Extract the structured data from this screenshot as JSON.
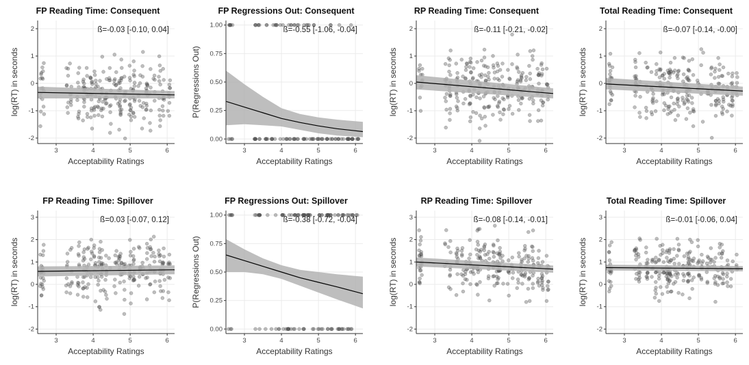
{
  "chart_data": [
    {
      "type": "scatter",
      "title": "FP Reading Time: Consequent",
      "xlabel": "Acceptability Ratings",
      "ylabel": "log(RT) in seconds",
      "annotation": "ß=-0.03 [-0.10, 0.04]",
      "xlim": [
        2.5,
        6.2
      ],
      "ylim": [
        -2.2,
        2.3
      ],
      "xticks": [
        3,
        4,
        5,
        6
      ],
      "yticks": [
        -2,
        -1,
        0,
        1,
        2
      ],
      "fit": {
        "x": [
          2.5,
          6.2
        ],
        "y": [
          -0.33,
          -0.42
        ]
      },
      "band": {
        "lower": [
          -0.55,
          -0.55
        ],
        "upper": [
          -0.12,
          -0.28
        ]
      },
      "grid": true
    },
    {
      "type": "scatter",
      "title": "FP Regressions Out: Consequent",
      "xlabel": "Acceptability Ratings",
      "ylabel": "P(Regressions Out)",
      "annotation": "ß=-0.55 [-1.06, -0.04]",
      "xlim": [
        2.5,
        6.2
      ],
      "ylim": [
        -0.04,
        1.04
      ],
      "xticks": [
        3,
        4,
        5,
        6
      ],
      "yticks": [
        0.0,
        0.25,
        0.5,
        0.75,
        1.0
      ],
      "fit": {
        "x": [
          2.5,
          3,
          3.5,
          4,
          4.5,
          5,
          5.5,
          6.2
        ],
        "y": [
          0.33,
          0.28,
          0.23,
          0.18,
          0.145,
          0.115,
          0.09,
          0.065
        ]
      },
      "band": {
        "lower": [
          0.12,
          0.13,
          0.12,
          0.11,
          0.08,
          0.05,
          0.03,
          0.015
        ],
        "upper": [
          0.6,
          0.48,
          0.37,
          0.27,
          0.22,
          0.19,
          0.17,
          0.15
        ]
      },
      "grid": true
    },
    {
      "type": "scatter",
      "title": "RP Reading Time: Consequent",
      "xlabel": "Acceptability Ratings",
      "ylabel": "log(RT) in seconds",
      "annotation": "ß=-0.11 [-0.21, -0.02]",
      "xlim": [
        2.5,
        6.2
      ],
      "ylim": [
        -2.2,
        2.3
      ],
      "xticks": [
        3,
        4,
        5,
        6
      ],
      "yticks": [
        -2,
        -1,
        0,
        1,
        2
      ],
      "fit": {
        "x": [
          2.5,
          6.2
        ],
        "y": [
          0.05,
          -0.37
        ]
      },
      "band": {
        "lower": [
          -0.22,
          -0.55
        ],
        "upper": [
          0.3,
          -0.18
        ]
      },
      "grid": true
    },
    {
      "type": "scatter",
      "title": "Total Reading Time: Consequent",
      "xlabel": "Acceptability Ratings",
      "ylabel": "log(RT) in seconds",
      "annotation": "ß=-0.07 [-0.14, -0.00]",
      "xlim": [
        2.5,
        6.2
      ],
      "ylim": [
        -2.2,
        2.3
      ],
      "xticks": [
        3,
        4,
        5,
        6
      ],
      "yticks": [
        -2,
        -1,
        0,
        1,
        2
      ],
      "fit": {
        "x": [
          2.5,
          6.2
        ],
        "y": [
          -0.02,
          -0.28
        ]
      },
      "band": {
        "lower": [
          -0.22,
          -0.45
        ],
        "upper": [
          0.2,
          -0.12
        ]
      },
      "grid": true
    },
    {
      "type": "scatter",
      "title": "FP Reading Time: Spillover",
      "xlabel": "Acceptability Ratings",
      "ylabel": "log(RT) in seconds",
      "annotation": "ß=0.03 [-0.07, 0.12]",
      "xlim": [
        2.5,
        6.2
      ],
      "ylim": [
        -2.2,
        3.3
      ],
      "xticks": [
        3,
        4,
        5,
        6
      ],
      "yticks": [
        -2,
        -1,
        0,
        1,
        2,
        3
      ],
      "fit": {
        "x": [
          2.5,
          6.2
        ],
        "y": [
          0.58,
          0.65
        ]
      },
      "band": {
        "lower": [
          0.35,
          0.45
        ],
        "upper": [
          0.8,
          0.85
        ]
      },
      "grid": true
    },
    {
      "type": "scatter",
      "title": "FP Regressions Out: Spillover",
      "xlabel": "Acceptability Ratings",
      "ylabel": "P(Regressions Out)",
      "annotation": "ß=-0.38 [-0.72, -0.04]",
      "xlim": [
        2.5,
        6.2
      ],
      "ylim": [
        -0.04,
        1.04
      ],
      "xticks": [
        3,
        4,
        5,
        6
      ],
      "yticks": [
        0.0,
        0.25,
        0.5,
        0.75,
        1.0
      ],
      "fit": {
        "x": [
          2.5,
          3,
          3.5,
          4,
          4.5,
          5,
          5.5,
          6.2
        ],
        "y": [
          0.65,
          0.6,
          0.55,
          0.5,
          0.45,
          0.41,
          0.37,
          0.31
        ]
      },
      "band": {
        "lower": [
          0.5,
          0.5,
          0.48,
          0.44,
          0.38,
          0.32,
          0.26,
          0.18
        ],
        "upper": [
          0.79,
          0.7,
          0.62,
          0.56,
          0.52,
          0.5,
          0.48,
          0.46
        ]
      },
      "grid": true
    },
    {
      "type": "scatter",
      "title": "RP Reading Time: Spillover",
      "xlabel": "Acceptability Ratings",
      "ylabel": "log(RT) in seconds",
      "annotation": "ß=-0.08 [-0.14, -0.01]",
      "xlim": [
        2.5,
        6.2
      ],
      "ylim": [
        -2.2,
        3.3
      ],
      "xticks": [
        3,
        4,
        5,
        6
      ],
      "yticks": [
        -2,
        -1,
        0,
        1,
        2,
        3
      ],
      "fit": {
        "x": [
          2.5,
          6.2
        ],
        "y": [
          1.0,
          0.68
        ]
      },
      "band": {
        "lower": [
          0.8,
          0.52
        ],
        "upper": [
          1.2,
          0.84
        ]
      },
      "grid": true
    },
    {
      "type": "scatter",
      "title": "Total Reading Time: Spillover",
      "xlabel": "Acceptability Ratings",
      "ylabel": "log(RT) in seconds",
      "annotation": "ß=-0.01 [-0.06, 0.04]",
      "xlim": [
        2.5,
        6.2
      ],
      "ylim": [
        -2.2,
        3.3
      ],
      "xticks": [
        3,
        4,
        5,
        6
      ],
      "yticks": [
        -2,
        -1,
        0,
        1,
        2,
        3
      ],
      "fit": {
        "x": [
          2.5,
          6.2
        ],
        "y": [
          0.75,
          0.7
        ]
      },
      "band": {
        "lower": [
          0.62,
          0.58
        ],
        "upper": [
          0.88,
          0.82
        ]
      },
      "grid": true
    }
  ],
  "colors": {
    "band": "#b3b3b3",
    "fit_line": "#000000",
    "points": "#555555",
    "grid": "#ebebeb",
    "axis": "#333333"
  }
}
